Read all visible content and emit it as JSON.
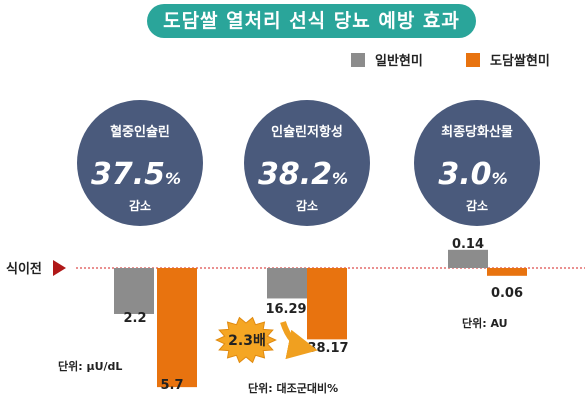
{
  "title": "도담쌀 열처리 선식 당뇨 예방 효과",
  "legend": [
    {
      "label": "일반현미",
      "color": "#8c8c8c"
    },
    {
      "label": "도담쌀현미",
      "color": "#e8730f"
    }
  ],
  "baseline_label": "식이전",
  "callout": "2.3배",
  "colors": {
    "title_bg": "#2aa59a",
    "circle": "#4a5a7c",
    "general": "#8c8c8c",
    "dodam": "#e8730f",
    "baseline": "#d42020",
    "callout_burst": "#f5a623"
  },
  "chart_data": [
    {
      "type": "bar",
      "metric": "혈중인슐린",
      "change": "37.5%",
      "change_word": "감소",
      "unit": "단위: μU/dL",
      "series": [
        {
          "name": "일반현미",
          "value": 2.2,
          "label": "2.2"
        },
        {
          "name": "도담쌀현미",
          "value": 5.7,
          "label": "5.7"
        }
      ],
      "direction": "down"
    },
    {
      "type": "bar",
      "metric": "인슐린저항성",
      "change": "38.2%",
      "change_word": "감소",
      "unit": "단위: 대조군대비%",
      "series": [
        {
          "name": "일반현미",
          "value": 16.29,
          "label": "16.29"
        },
        {
          "name": "도담쌀현미",
          "value": 38.17,
          "label": "38.17"
        }
      ],
      "direction": "down"
    },
    {
      "type": "bar",
      "metric": "최종당화산물",
      "change": "3.0%",
      "change_word": "감소",
      "unit": "단위: AU",
      "series": [
        {
          "name": "일반현미",
          "value": 0.14,
          "label": "0.14"
        },
        {
          "name": "도담쌀현미",
          "value": 0.06,
          "label": "0.06"
        }
      ],
      "direction": "mixed"
    }
  ]
}
